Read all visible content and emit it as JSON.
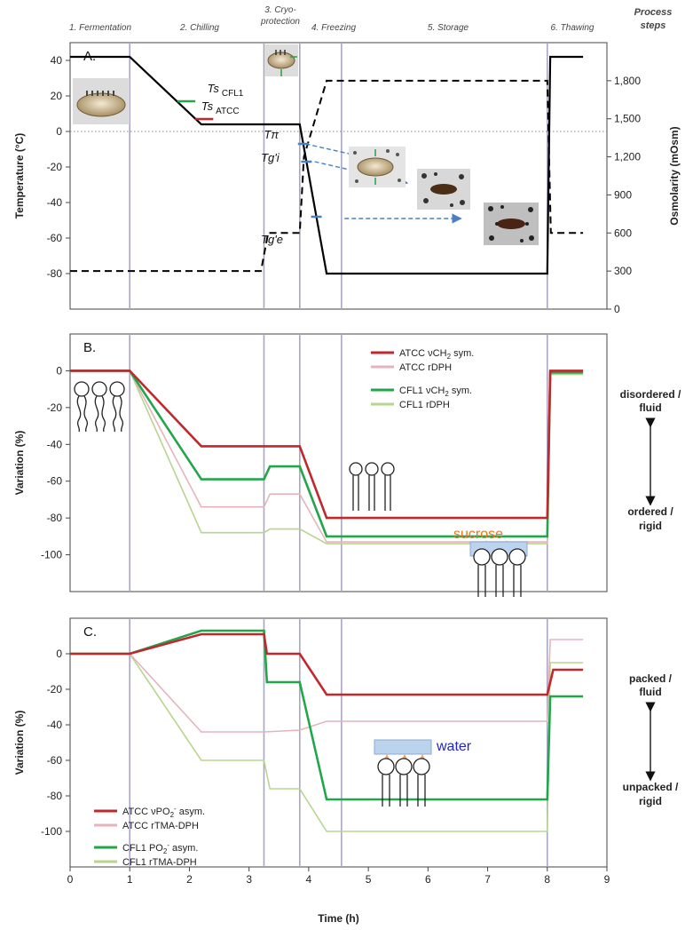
{
  "process_steps": {
    "title_line1": "Process",
    "title_line2": "steps",
    "steps": [
      {
        "line1": "1. Fermentation"
      },
      {
        "line1": "2. Chilling"
      },
      {
        "line1": "3. Cryo-",
        "line2": "protection"
      },
      {
        "line1": "4. Freezing"
      },
      {
        "line1": "5. Storage"
      },
      {
        "line1": "6. Thawing"
      }
    ],
    "boundaries_h": [
      1,
      3.25,
      3.85,
      4.55,
      8
    ]
  },
  "colors": {
    "atcc_main": "#c0282d",
    "atcc_light": "#e6b3bd",
    "cfl1_main": "#22a64a",
    "cfl1_light": "#b7d58e",
    "black": "#000000",
    "step_line": "#a8a5c6",
    "arrow_blue": "#4a7fc1",
    "sucrose_text": "#e87722",
    "water_text": "#2026c8",
    "box_blue": "#bcd3ee"
  },
  "chart_data": [
    {
      "type": "line",
      "panel_label": "A.",
      "ylabel": "Temperature (°C)",
      "ylabel_right": "Osmolarity (mOsm)",
      "ylim": [
        -100,
        50
      ],
      "yticks": [
        40,
        20,
        0,
        -20,
        -40,
        -60,
        -80
      ],
      "ylim_right": [
        0,
        2100
      ],
      "yticks_right": [
        "1,800",
        "1,500",
        "1,200",
        "900",
        "600",
        "300",
        "0"
      ],
      "yticks_right_values": [
        1800,
        1500,
        1200,
        900,
        600,
        300,
        0
      ],
      "series": [
        {
          "key": "temperature",
          "axis": "left",
          "style": "solid",
          "x": [
            0,
            1,
            2.2,
            3.85,
            4.3,
            4.55,
            8,
            8.05,
            8.6
          ],
          "y": [
            42,
            42,
            4,
            4,
            -80,
            -80,
            -80,
            42,
            42
          ]
        },
        {
          "key": "osmolarity",
          "axis": "right",
          "style": "dashed",
          "x": [
            0,
            3.2,
            3.32,
            3.85,
            3.92,
            4.3,
            8,
            8.06,
            8.6
          ],
          "y": [
            300,
            300,
            600,
            600,
            1200,
            1800,
            1800,
            600,
            600
          ]
        }
      ],
      "annotations": [
        {
          "text": "Ts",
          "sub": "CFL1",
          "x": 2.3,
          "y": 22
        },
        {
          "text": "Ts",
          "sub": "ATCC",
          "x": 2.2,
          "y": 12
        },
        {
          "text": "Tπ",
          "x": 3.25,
          "y": -4
        },
        {
          "text": "Tg'i",
          "x": 3.2,
          "y": -17
        },
        {
          "text": "Tg'e",
          "x": 3.2,
          "y": -63
        }
      ],
      "arrows": [
        {
          "from": [
            3.95,
            -7
          ],
          "to": [
            5,
            -15
          ]
        },
        {
          "from": [
            4.1,
            -17
          ],
          "to": [
            5.65,
            -29
          ]
        },
        {
          "from": [
            4.6,
            -49
          ],
          "to": [
            6.55,
            -49
          ]
        }
      ]
    },
    {
      "type": "line",
      "panel_label": "B.",
      "ylabel": "Variation (%)",
      "ylim": [
        -120,
        20
      ],
      "yticks": [
        0,
        -20,
        -40,
        -60,
        -80,
        -100
      ],
      "side_top_line1": "disordered /",
      "side_top_line2": "fluid",
      "side_bottom_line1": "ordered /",
      "side_bottom_line2": "rigid",
      "series": [
        {
          "key": "atcc_main",
          "legend": "ATCC νCH",
          "legend_sub": "2",
          "legend_tail": " sym.",
          "x": [
            0,
            1,
            2.2,
            3.25,
            3.85,
            4.3,
            8,
            8.05,
            8.6
          ],
          "y": [
            0,
            0,
            -41,
            -41,
            -41,
            -80,
            -80,
            0,
            0
          ]
        },
        {
          "key": "atcc_light",
          "legend": "ATCC rDPH",
          "x": [
            0,
            1,
            2.2,
            3.25,
            3.35,
            3.85,
            4.3,
            8,
            8.05,
            8.6
          ],
          "y": [
            0,
            0,
            -74,
            -74,
            -67,
            -67,
            -93,
            -93,
            -1,
            -1
          ]
        },
        {
          "key": "cfl1_main",
          "legend": "CFL1 νCH",
          "legend_sub": "2",
          "legend_tail": " sym.",
          "x": [
            0,
            1,
            2.2,
            3.25,
            3.35,
            3.85,
            4.3,
            8,
            8.05,
            8.6
          ],
          "y": [
            0,
            0,
            -59,
            -59,
            -52,
            -52,
            -90,
            -90,
            -1,
            -1
          ]
        },
        {
          "key": "cfl1_light",
          "legend": "CFL1 rDPH",
          "x": [
            0,
            1,
            2.2,
            3.25,
            3.35,
            3.85,
            4.3,
            8,
            8.05,
            8.6
          ],
          "y": [
            0,
            0,
            -88,
            -88,
            -86,
            -86,
            -94,
            -94,
            -2,
            -2
          ]
        }
      ]
    },
    {
      "type": "line",
      "panel_label": "C.",
      "ylabel": "Variation (%)",
      "xlabel": "Time (h)",
      "ylim": [
        -120,
        20
      ],
      "xlim": [
        0,
        9
      ],
      "xticks": [
        0,
        1,
        2,
        3,
        4,
        5,
        6,
        7,
        8,
        9
      ],
      "yticks": [
        0,
        -20,
        -40,
        -60,
        -80,
        -100
      ],
      "side_top_line1": "packed /",
      "side_top_line2": "fluid",
      "side_bottom_line1": "unpacked /",
      "side_bottom_line2": "rigid",
      "sucrose_label": "sucrose",
      "water_label": "water",
      "series": [
        {
          "key": "atcc_main",
          "legend": "ATCC νPO",
          "legend_sub": "2",
          "legend_sup": "-",
          "legend_tail": " asym.",
          "x": [
            0,
            1,
            2.2,
            3.25,
            3.3,
            3.85,
            4.3,
            8,
            8.1,
            8.6
          ],
          "y": [
            0,
            0,
            11,
            11,
            0,
            0,
            -23,
            -23,
            -9,
            -9
          ]
        },
        {
          "key": "atcc_light",
          "legend": "ATCC rTMA-DPH",
          "x": [
            0,
            1,
            2.2,
            3.25,
            3.85,
            4.3,
            8,
            8.05,
            8.6
          ],
          "y": [
            0,
            0,
            -44,
            -44,
            -43,
            -38,
            -38,
            8,
            8
          ]
        },
        {
          "key": "cfl1_main",
          "legend": "CFL1 PO",
          "legend_sub": "2",
          "legend_sup": "-",
          "legend_tail": " asym.",
          "x": [
            0,
            1,
            2.2,
            3.25,
            3.3,
            3.85,
            4.3,
            8,
            8.05,
            8.6
          ],
          "y": [
            0,
            0,
            13,
            13,
            -16,
            -16,
            -82,
            -82,
            -24,
            -24
          ]
        },
        {
          "key": "cfl1_light",
          "legend": "CFL1 rTMA-DPH",
          "x": [
            0,
            1,
            2.2,
            3.25,
            3.35,
            3.85,
            4.3,
            8,
            8.05,
            8.6
          ],
          "y": [
            0,
            0,
            -60,
            -60,
            -76,
            -76,
            -100,
            -100,
            -5,
            -5
          ]
        }
      ]
    }
  ]
}
